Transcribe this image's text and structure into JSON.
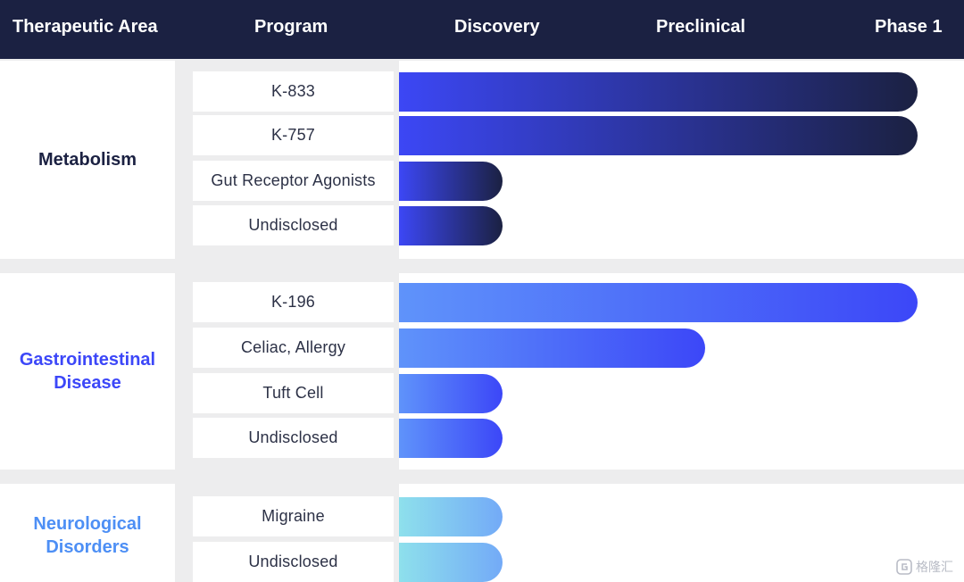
{
  "header": {
    "columns": [
      "Therapeutic Area",
      "Program",
      "Discovery",
      "Preclinical",
      "Phase 1"
    ]
  },
  "chart_data": {
    "type": "bar",
    "orientation": "horizontal",
    "stages": [
      "Discovery",
      "Preclinical",
      "Phase 1"
    ],
    "value_unit": "fraction of pipeline width (0 to 1, end of Phase 1 = 1)",
    "xlim": [
      0,
      1
    ],
    "groups": [
      {
        "area_lines": [
          "Metabolism"
        ],
        "color": "#1b2142",
        "gradient": [
          "#3c47f5",
          "#1b2142"
        ],
        "programs": [
          {
            "name": "K-833",
            "value": 1.0
          },
          {
            "name": "K-757",
            "value": 1.0
          },
          {
            "name": "Gut Receptor Agonists",
            "value": 0.2
          },
          {
            "name": "Undisclosed",
            "value": 0.2
          }
        ]
      },
      {
        "area_lines": [
          "Gastrointestinal",
          "Disease"
        ],
        "color": "#3c47f8",
        "gradient": [
          "#5f93fa",
          "#3c47f8"
        ],
        "programs": [
          {
            "name": "K-196",
            "value": 1.0
          },
          {
            "name": "Celiac, Allergy",
            "value": 0.59
          },
          {
            "name": "Tuft Cell",
            "value": 0.2
          },
          {
            "name": "Undisclosed",
            "value": 0.2
          }
        ]
      },
      {
        "area_lines": [
          "Neurological",
          "Disorders"
        ],
        "color": "#4d8ff5",
        "gradient": [
          "#8ee0ec",
          "#73aaf7"
        ],
        "programs": [
          {
            "name": "Migraine",
            "value": 0.2
          },
          {
            "name": "Undisclosed",
            "value": 0.2
          }
        ]
      }
    ]
  },
  "watermark": {
    "text": "格隆汇",
    "icon": "gelonghui-logo-icon"
  }
}
